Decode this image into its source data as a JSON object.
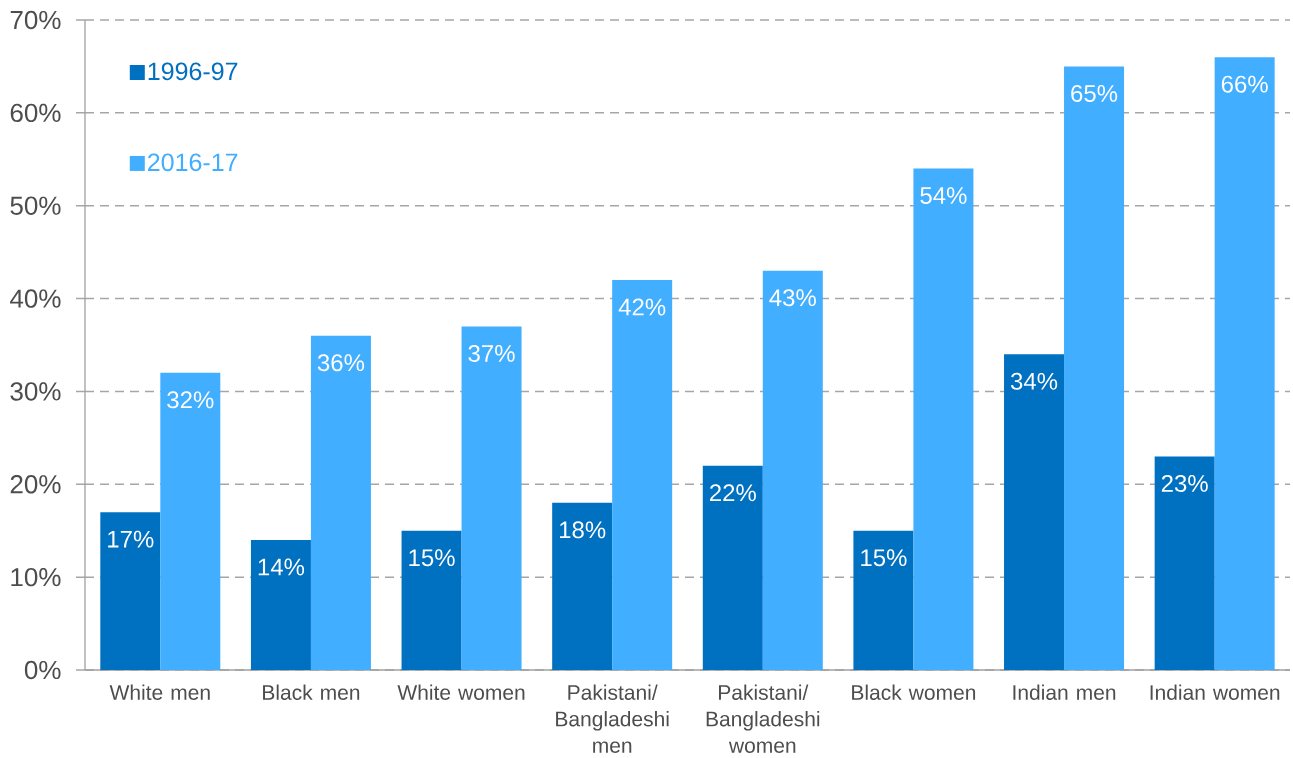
{
  "chart_data": {
    "type": "bar",
    "categories": [
      "White men",
      "Black men",
      "White women",
      "Pakistani/ Bangladeshi men",
      "Pakistani/ Bangladeshi women",
      "Black women",
      "Indian men",
      "Indian women"
    ],
    "series": [
      {
        "name": "1996-97",
        "color": "#0070c0",
        "values": [
          17,
          14,
          15,
          18,
          22,
          15,
          34,
          23
        ],
        "value_labels": [
          "17%",
          "14%",
          "15%",
          "18%",
          "22%",
          "15%",
          "34%",
          "23%"
        ]
      },
      {
        "name": "2016-17",
        "color": "#42aeff",
        "values": [
          32,
          36,
          37,
          42,
          43,
          54,
          65,
          66
        ],
        "value_labels": [
          "32%",
          "36%",
          "37%",
          "42%",
          "43%",
          "54%",
          "65%",
          "66%"
        ]
      }
    ],
    "ylim": [
      0,
      70
    ],
    "yticks": [
      {
        "value": 0,
        "label": "0%"
      },
      {
        "value": 10,
        "label": "10%"
      },
      {
        "value": 20,
        "label": "20%"
      },
      {
        "value": 30,
        "label": "30%"
      },
      {
        "value": 40,
        "label": "40%"
      },
      {
        "value": 50,
        "label": "50%"
      },
      {
        "value": 60,
        "label": "60%"
      },
      {
        "value": 70,
        "label": "70%"
      }
    ],
    "grid": "y",
    "legend": "top left"
  }
}
